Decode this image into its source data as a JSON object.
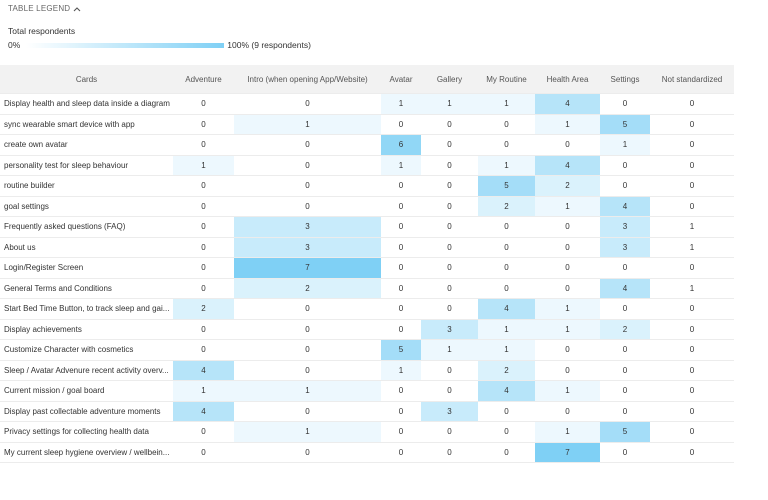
{
  "legend": {
    "title": "TABLE LEGEND",
    "subtitle": "Total respondents",
    "min_label": "0%",
    "max_label": "100% (9 respondents)"
  },
  "table": {
    "headers": [
      "Cards",
      "Adventure",
      "Intro (when opening App/Website)",
      "Avatar",
      "Gallery",
      "My Routine",
      "Health Area",
      "Settings",
      "Not standardized"
    ],
    "rows": [
      {
        "card": "Display health and sleep data inside a diagram",
        "cells": [
          0,
          0,
          1,
          1,
          1,
          4,
          0,
          0
        ]
      },
      {
        "card": "sync wearable smart device with app",
        "cells": [
          0,
          1,
          0,
          0,
          0,
          1,
          5,
          0
        ]
      },
      {
        "card": "create own avatar",
        "cells": [
          0,
          0,
          6,
          0,
          0,
          0,
          1,
          0
        ]
      },
      {
        "card": "personality test for sleep behaviour",
        "cells": [
          1,
          0,
          1,
          0,
          1,
          4,
          0,
          0
        ]
      },
      {
        "card": "routine builder",
        "cells": [
          0,
          0,
          0,
          0,
          5,
          2,
          0,
          0
        ]
      },
      {
        "card": "goal settings",
        "cells": [
          0,
          0,
          0,
          0,
          2,
          1,
          4,
          0
        ]
      },
      {
        "card": "Frequently asked questions (FAQ)",
        "cells": [
          0,
          3,
          0,
          0,
          0,
          0,
          3,
          1
        ]
      },
      {
        "card": "About us",
        "cells": [
          0,
          3,
          0,
          0,
          0,
          0,
          3,
          1
        ]
      },
      {
        "card": "Login/Register Screen",
        "cells": [
          0,
          7,
          0,
          0,
          0,
          0,
          0,
          0
        ]
      },
      {
        "card": "General Terms and Conditions",
        "cells": [
          0,
          2,
          0,
          0,
          0,
          0,
          4,
          1
        ]
      },
      {
        "card": "Start Bed Time Button, to track sleep and gai...",
        "cells": [
          2,
          0,
          0,
          0,
          4,
          1,
          0,
          0
        ]
      },
      {
        "card": "Display achievements",
        "cells": [
          0,
          0,
          0,
          3,
          1,
          1,
          2,
          0
        ]
      },
      {
        "card": "Customize Character with cosmetics",
        "cells": [
          0,
          0,
          5,
          1,
          1,
          0,
          0,
          0
        ]
      },
      {
        "card": "Sleep / Avatar Advenure recent activity overv...",
        "cells": [
          4,
          0,
          1,
          0,
          2,
          0,
          0,
          0
        ]
      },
      {
        "card": "Current mission / goal board",
        "cells": [
          1,
          1,
          0,
          0,
          4,
          1,
          0,
          0
        ]
      },
      {
        "card": "Display past collectable adventure moments",
        "cells": [
          4,
          0,
          0,
          3,
          0,
          0,
          0,
          0
        ]
      },
      {
        "card": "Privacy settings for collecting health data",
        "cells": [
          0,
          1,
          0,
          0,
          0,
          1,
          5,
          0
        ]
      },
      {
        "card": "My current sleep hygiene overview / wellbein...",
        "cells": [
          0,
          0,
          0,
          0,
          0,
          7,
          0,
          0
        ]
      }
    ]
  }
}
